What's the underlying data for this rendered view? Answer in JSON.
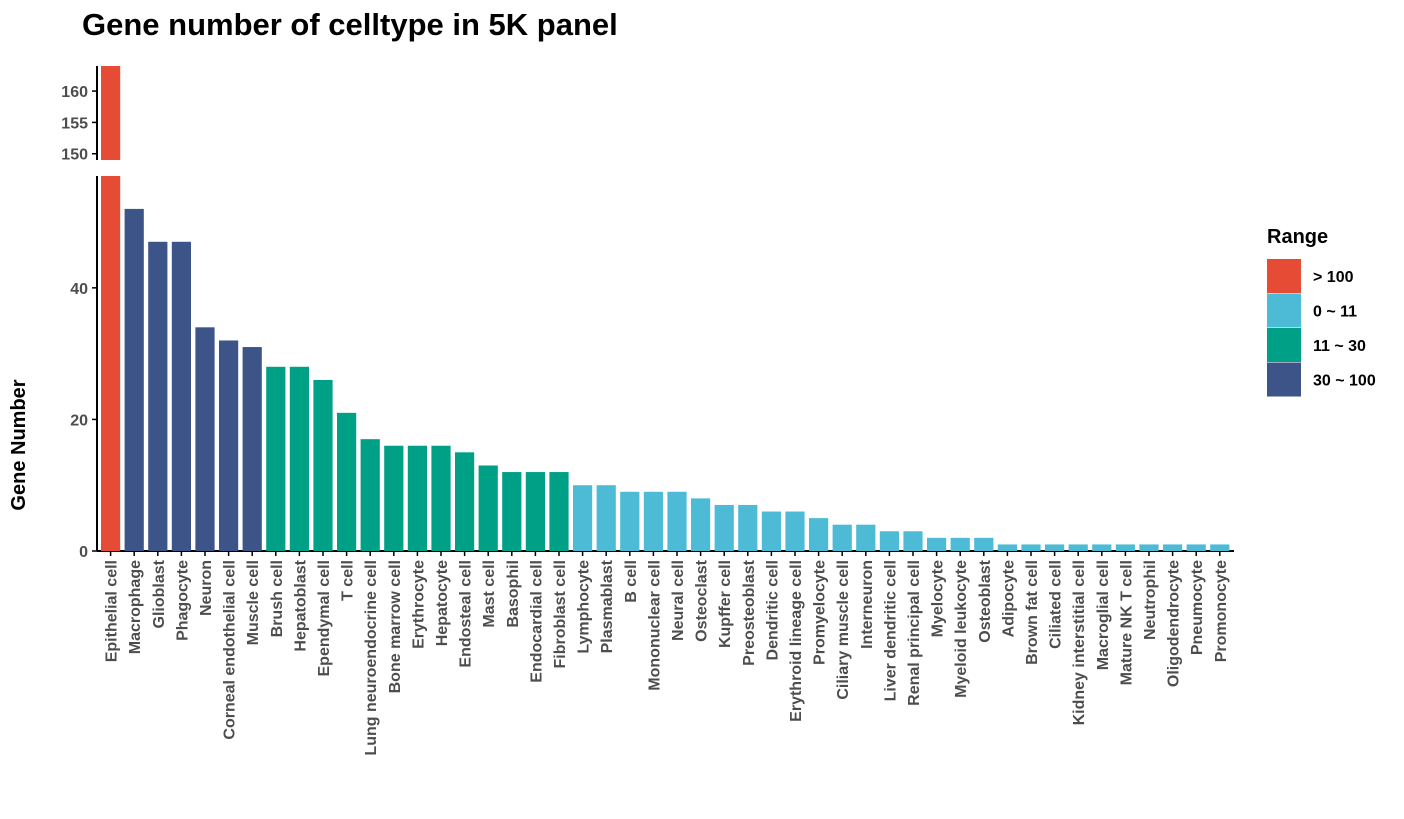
{
  "chart_data": {
    "type": "bar",
    "title": "Gene number of celltype in 5K panel",
    "xlabel": "",
    "ylabel": "Gene Number",
    "ylim_lower": [
      0,
      57
    ],
    "ylim_upper": [
      149,
      164
    ],
    "y_ticks_lower": [
      "0",
      "20",
      "40"
    ],
    "y_ticks_upper": [
      "150",
      "155",
      "160"
    ],
    "legend_title": "Range",
    "legend": [
      {
        "key": "gt100",
        "label": "> 100",
        "color": "#E64B35"
      },
      {
        "key": "r0_11",
        "label": "0 ~ 11",
        "color": "#4DBBD5"
      },
      {
        "key": "r11_30",
        "label": "11 ~ 30",
        "color": "#00A087"
      },
      {
        "key": "r30_100",
        "label": "30 ~ 100",
        "color": "#3C5488"
      }
    ],
    "bars": [
      {
        "category": "Epithelial cell",
        "value": 164,
        "range": "gt100"
      },
      {
        "category": "Macrophage",
        "value": 52,
        "range": "r30_100"
      },
      {
        "category": "Glioblast",
        "value": 47,
        "range": "r30_100"
      },
      {
        "category": "Phagocyte",
        "value": 47,
        "range": "r30_100"
      },
      {
        "category": "Neuron",
        "value": 34,
        "range": "r30_100"
      },
      {
        "category": "Corneal endothelial cell",
        "value": 32,
        "range": "r30_100"
      },
      {
        "category": "Muscle cell",
        "value": 31,
        "range": "r30_100"
      },
      {
        "category": "Brush cell",
        "value": 28,
        "range": "r11_30"
      },
      {
        "category": "Hepatoblast",
        "value": 28,
        "range": "r11_30"
      },
      {
        "category": "Ependymal cell",
        "value": 26,
        "range": "r11_30"
      },
      {
        "category": "T cell",
        "value": 21,
        "range": "r11_30"
      },
      {
        "category": "Lung neuroendocrine cell",
        "value": 17,
        "range": "r11_30"
      },
      {
        "category": "Bone marrow cell",
        "value": 16,
        "range": "r11_30"
      },
      {
        "category": "Erythrocyte",
        "value": 16,
        "range": "r11_30"
      },
      {
        "category": "Hepatocyte",
        "value": 16,
        "range": "r11_30"
      },
      {
        "category": "Endosteal cell",
        "value": 15,
        "range": "r11_30"
      },
      {
        "category": "Mast cell",
        "value": 13,
        "range": "r11_30"
      },
      {
        "category": "Basophil",
        "value": 12,
        "range": "r11_30"
      },
      {
        "category": "Endocardial cell",
        "value": 12,
        "range": "r11_30"
      },
      {
        "category": "Fibroblast cell",
        "value": 12,
        "range": "r11_30"
      },
      {
        "category": "Lymphocyte",
        "value": 10,
        "range": "r0_11"
      },
      {
        "category": "Plasmablast",
        "value": 10,
        "range": "r0_11"
      },
      {
        "category": "B cell",
        "value": 9,
        "range": "r0_11"
      },
      {
        "category": "Mononuclear cell",
        "value": 9,
        "range": "r0_11"
      },
      {
        "category": "Neural cell",
        "value": 9,
        "range": "r0_11"
      },
      {
        "category": "Osteoclast",
        "value": 8,
        "range": "r0_11"
      },
      {
        "category": "Kupffer cell",
        "value": 7,
        "range": "r0_11"
      },
      {
        "category": "Preosteoblast",
        "value": 7,
        "range": "r0_11"
      },
      {
        "category": "Dendritic cell",
        "value": 6,
        "range": "r0_11"
      },
      {
        "category": "Erythroid lineage cell",
        "value": 6,
        "range": "r0_11"
      },
      {
        "category": "Promyelocyte",
        "value": 5,
        "range": "r0_11"
      },
      {
        "category": "Ciliary muscle cell",
        "value": 4,
        "range": "r0_11"
      },
      {
        "category": "Interneuron",
        "value": 4,
        "range": "r0_11"
      },
      {
        "category": "Liver dendritic cell",
        "value": 3,
        "range": "r0_11"
      },
      {
        "category": "Renal principal cell",
        "value": 3,
        "range": "r0_11"
      },
      {
        "category": "Myelocyte",
        "value": 2,
        "range": "r0_11"
      },
      {
        "category": "Myeloid leukocyte",
        "value": 2,
        "range": "r0_11"
      },
      {
        "category": "Osteoblast",
        "value": 2,
        "range": "r0_11"
      },
      {
        "category": "Adipocyte",
        "value": 1,
        "range": "r0_11"
      },
      {
        "category": "Brown fat cell",
        "value": 1,
        "range": "r0_11"
      },
      {
        "category": "Ciliated cell",
        "value": 1,
        "range": "r0_11"
      },
      {
        "category": "Kidney interstitial cell",
        "value": 1,
        "range": "r0_11"
      },
      {
        "category": "Macroglial cell",
        "value": 1,
        "range": "r0_11"
      },
      {
        "category": "Mature NK T cell",
        "value": 1,
        "range": "r0_11"
      },
      {
        "category": "Neutrophil",
        "value": 1,
        "range": "r0_11"
      },
      {
        "category": "Oligodendrocyte",
        "value": 1,
        "range": "r0_11"
      },
      {
        "category": "Pneumocyte",
        "value": 1,
        "range": "r0_11"
      },
      {
        "category": "Promonocyte",
        "value": 1,
        "range": "r0_11"
      }
    ]
  }
}
